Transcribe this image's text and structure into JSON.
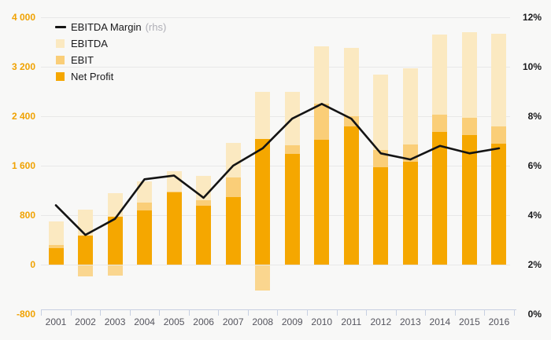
{
  "chart_data": {
    "type": "bar",
    "title": "",
    "categories": [
      "2001",
      "2002",
      "2003",
      "2004",
      "2005",
      "2006",
      "2007",
      "2008",
      "2009",
      "2010",
      "2011",
      "2012",
      "2013",
      "2014",
      "2015",
      "2016"
    ],
    "series": [
      {
        "name": "EBITDA",
        "type": "bar",
        "axis": "left",
        "color": "#fbe9c1",
        "values": [
          700,
          890,
          1160,
          1350,
          1510,
          1440,
          1970,
          2800,
          2800,
          3530,
          3510,
          3070,
          3170,
          3720,
          3760,
          3730
        ]
      },
      {
        "name": "EBIT",
        "type": "bar",
        "axis": "left",
        "color": "#face78",
        "values": [
          320,
          -180,
          -160,
          1000,
          1185,
          1040,
          1415,
          -400,
          1925,
          2600,
          2400,
          1855,
          1940,
          2420,
          2370,
          2230
        ]
      },
      {
        "name": "Net Profit",
        "type": "bar",
        "axis": "left",
        "color": "#f5a700",
        "values": [
          270,
          475,
          770,
          880,
          1170,
          950,
          1095,
          2030,
          1790,
          2020,
          2240,
          1570,
          1665,
          2140,
          2100,
          1960
        ]
      },
      {
        "name": "EBITDA Margin",
        "type": "line",
        "axis": "right",
        "unit": "%",
        "color": "#141414",
        "values": [
          4.4,
          3.2,
          3.85,
          5.45,
          5.6,
          4.7,
          6.0,
          6.7,
          7.9,
          8.5,
          7.9,
          6.5,
          6.25,
          6.8,
          6.5,
          6.7
        ]
      }
    ],
    "left_axis": {
      "min": -800,
      "max": 4000,
      "label_color": "#f0a202",
      "tick_values": [
        4000,
        3200,
        2400,
        1600,
        800,
        0,
        -800
      ],
      "tick_labels": [
        "4 000",
        "3 200",
        "2 400",
        "1 600",
        "800",
        "0",
        "-800"
      ]
    },
    "right_axis": {
      "min": 0,
      "max": 12,
      "label_color": "#1a1a1c",
      "tick_values": [
        12,
        10,
        8,
        6,
        4,
        2,
        0
      ],
      "tick_labels": [
        "12%",
        "10%",
        "8%",
        "6%",
        "4%",
        "2%",
        "0%"
      ]
    },
    "grid": true,
    "legend_position": "top-left"
  },
  "legend": {
    "margin_label": "EBITDA Margin",
    "margin_suffix": "(rhs)",
    "ebitda_label": "EBITDA",
    "ebit_label": "EBIT",
    "net_profit_label": "Net Profit"
  }
}
